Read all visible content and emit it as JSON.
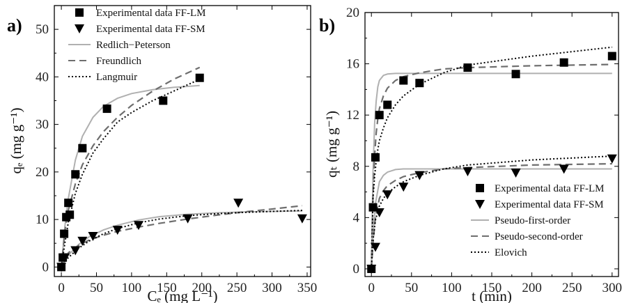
{
  "chart_data": [
    {
      "type": "scatter",
      "panel_label": "a)",
      "xlabel": "Cₑ (mg L⁻¹)",
      "ylabel": "qₑ (mg g⁻¹)",
      "xlim": [
        -10,
        355
      ],
      "ylim": [
        -2,
        55
      ],
      "xticks": [
        0,
        50,
        100,
        150,
        200,
        250,
        300,
        350
      ],
      "yticks": [
        0,
        10,
        20,
        30,
        40,
        50
      ],
      "legend_position": "top-left",
      "series": [
        {
          "name": "Experimental data FF-LM",
          "kind": "points",
          "marker": "square",
          "x": [
            0,
            2,
            4,
            7,
            10,
            12,
            20,
            30,
            65,
            145,
            197
          ],
          "y": [
            0,
            2,
            7,
            10.5,
            13.5,
            11,
            19.5,
            25,
            33.3,
            35,
            39.8
          ]
        },
        {
          "name": "Experimental data FF-SM",
          "kind": "points",
          "marker": "triangle-down",
          "x": [
            0,
            5,
            20,
            30,
            45,
            80,
            110,
            180,
            252,
            343
          ],
          "y": [
            0,
            2,
            3.5,
            5.5,
            6.5,
            7.8,
            8.8,
            10.2,
            13.5,
            10.2
          ]
        },
        {
          "name": "Redlich−Peterson",
          "kind": "line",
          "color": "#b0b0b0",
          "dash": "solid",
          "x": [
            0,
            5,
            10,
            20,
            30,
            45,
            60,
            80,
            100,
            130,
            160,
            197
          ],
          "y": [
            0,
            8.5,
            14.5,
            22.5,
            27.5,
            31.5,
            33.8,
            35.5,
            36.5,
            37.3,
            37.8,
            38.2
          ]
        },
        {
          "name": "Freundlich",
          "kind": "line",
          "color": "#6e6e6e",
          "dash": "long",
          "x": [
            0,
            5,
            10,
            20,
            30,
            45,
            60,
            80,
            100,
            130,
            160,
            197
          ],
          "y": [
            0,
            7.5,
            12,
            17.5,
            21.5,
            25.5,
            28.5,
            31.5,
            34,
            37,
            39.5,
            42
          ]
        },
        {
          "name": "Langmuir",
          "kind": "line",
          "color": "#000000",
          "dash": "dotted",
          "x": [
            0,
            5,
            10,
            20,
            30,
            45,
            60,
            80,
            100,
            130,
            160,
            197
          ],
          "y": [
            0,
            5,
            9.5,
            15.5,
            19.5,
            24,
            27,
            30.5,
            32.5,
            35,
            37,
            39.5
          ]
        },
        {
          "name": "",
          "kind": "line",
          "color": "#b0b0b0",
          "dash": "solid",
          "x": [
            0,
            10,
            25,
            40,
            60,
            80,
            110,
            140,
            180,
            220,
            260,
            300,
            343
          ],
          "y": [
            0,
            2.5,
            4.8,
            6.4,
            7.8,
            8.8,
            9.9,
            10.6,
            11.1,
            11.4,
            11.6,
            11.7,
            11.8
          ]
        },
        {
          "name": "",
          "kind": "line",
          "color": "#6e6e6e",
          "dash": "long",
          "x": [
            0,
            10,
            25,
            40,
            60,
            80,
            110,
            140,
            180,
            220,
            260,
            300,
            343
          ],
          "y": [
            0,
            3,
            4.6,
            5.7,
            6.7,
            7.5,
            8.4,
            9.2,
            10.1,
            10.9,
            11.6,
            12.2,
            12.9
          ]
        },
        {
          "name": "",
          "kind": "line",
          "color": "#000000",
          "dash": "dotted",
          "x": [
            0,
            10,
            25,
            40,
            60,
            80,
            110,
            140,
            180,
            220,
            260,
            300,
            343
          ],
          "y": [
            0,
            2,
            4,
            5.5,
            7,
            8.1,
            9.3,
            10.1,
            10.8,
            11.2,
            11.5,
            11.7,
            11.9
          ]
        }
      ]
    },
    {
      "type": "scatter",
      "panel_label": "b)",
      "xlabel": "t (min)",
      "ylabel": "qₜ (mg g⁻¹)",
      "xlim": [
        -8,
        308
      ],
      "ylim": [
        -0.6,
        20
      ],
      "xticks": [
        0,
        50,
        100,
        150,
        200,
        250,
        300
      ],
      "yticks": [
        0,
        4,
        8,
        12,
        16,
        20
      ],
      "legend_position": "bottom-right",
      "series": [
        {
          "name": "Experimental data FF-LM",
          "kind": "points",
          "marker": "square",
          "x": [
            0,
            2,
            5,
            10,
            20,
            40,
            60,
            120,
            180,
            240,
            300
          ],
          "y": [
            0,
            4.8,
            8.7,
            12,
            12.8,
            14.7,
            14.5,
            15.7,
            15.2,
            16.1,
            16.6
          ]
        },
        {
          "name": "Experimental data FF-SM",
          "kind": "points",
          "marker": "triangle-down",
          "x": [
            0,
            5,
            10,
            20,
            40,
            60,
            120,
            180,
            240,
            300
          ],
          "y": [
            0,
            1.7,
            4.4,
            5.8,
            6.4,
            7.3,
            7.6,
            7.5,
            7.8,
            8.6
          ]
        },
        {
          "name": "Pseudo-first-order",
          "kind": "line",
          "color": "#b0b0b0",
          "dash": "solid",
          "x": [
            0,
            2,
            4,
            6,
            8,
            10,
            15,
            20,
            30,
            40,
            60,
            90,
            120,
            200,
            300
          ],
          "y": [
            0,
            7.5,
            11.3,
            13.1,
            14.2,
            14.7,
            15.1,
            15.2,
            15.25,
            15.25,
            15.25,
            15.25,
            15.25,
            15.25,
            15.25
          ]
        },
        {
          "name": "Pseudo-second-order",
          "kind": "line",
          "color": "#6e6e6e",
          "dash": "long",
          "x": [
            0,
            2,
            4,
            6,
            8,
            10,
            15,
            20,
            30,
            40,
            60,
            90,
            120,
            200,
            300
          ],
          "y": [
            0,
            5.6,
            8.8,
            10.6,
            11.7,
            12.5,
            13.5,
            14.1,
            14.7,
            15,
            15.3,
            15.6,
            15.7,
            15.85,
            15.95
          ]
        },
        {
          "name": "Elovich",
          "kind": "line",
          "color": "#000000",
          "dash": "dotted",
          "x": [
            0,
            2,
            4,
            6,
            8,
            10,
            15,
            20,
            30,
            40,
            60,
            90,
            120,
            200,
            300
          ],
          "y": [
            0,
            5.5,
            7.2,
            8.4,
            9.3,
            10,
            11,
            11.8,
            12.8,
            13.5,
            14.4,
            15.3,
            15.9,
            16.6,
            17.3
          ]
        },
        {
          "name": "",
          "kind": "line",
          "color": "#b0b0b0",
          "dash": "solid",
          "x": [
            0,
            2,
            5,
            10,
            15,
            20,
            30,
            40,
            60,
            90,
            120,
            200,
            300
          ],
          "y": [
            0,
            2.6,
            5.1,
            6.8,
            7.3,
            7.55,
            7.75,
            7.8,
            7.8,
            7.8,
            7.8,
            7.8,
            7.8
          ]
        },
        {
          "name": "",
          "kind": "line",
          "color": "#6e6e6e",
          "dash": "long",
          "x": [
            0,
            2,
            5,
            10,
            15,
            20,
            30,
            40,
            60,
            90,
            120,
            200,
            300
          ],
          "y": [
            0,
            2,
            4,
            5.5,
            6.1,
            6.5,
            6.9,
            7.2,
            7.5,
            7.8,
            7.9,
            8.1,
            8.2
          ]
        },
        {
          "name": "",
          "kind": "line",
          "color": "#000000",
          "dash": "dotted",
          "x": [
            0,
            2,
            5,
            10,
            15,
            20,
            30,
            40,
            60,
            90,
            120,
            200,
            300
          ],
          "y": [
            0,
            2.2,
            3.8,
            4.9,
            5.5,
            5.9,
            6.4,
            6.8,
            7.3,
            7.8,
            8.1,
            8.5,
            8.8
          ]
        }
      ]
    }
  ]
}
